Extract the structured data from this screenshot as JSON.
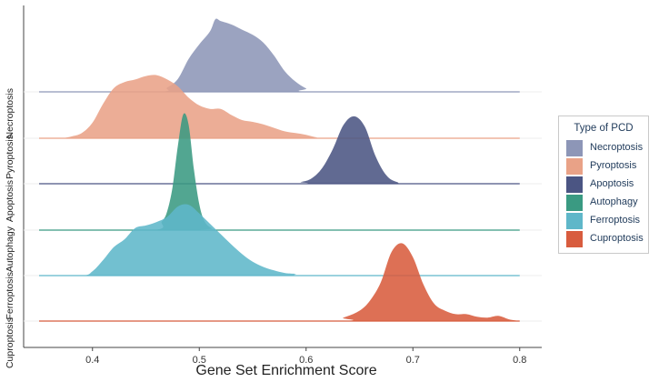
{
  "chart_data": {
    "type": "ridgeline",
    "xlabel": "Gene Set Enrichment Score",
    "ylabel": "",
    "xlim": [
      0.34,
      0.81
    ],
    "xticks": [
      "0.4",
      "0.5",
      "0.6",
      "0.7",
      "0.8"
    ],
    "xtick_values": [
      0.4,
      0.5,
      0.6,
      0.7,
      0.8
    ],
    "grid": false,
    "legend": {
      "title": "Type of PCD",
      "position": "right"
    },
    "series": [
      {
        "name": "Necroptosis",
        "color": "#8d96b7",
        "x_range": [
          0.35,
          0.8
        ],
        "density": [
          [
            0.35,
            0
          ],
          [
            0.46,
            0
          ],
          [
            0.47,
            0.05
          ],
          [
            0.48,
            0.15
          ],
          [
            0.49,
            0.38
          ],
          [
            0.5,
            0.55
          ],
          [
            0.51,
            0.7
          ],
          [
            0.515,
            0.84
          ],
          [
            0.52,
            0.82
          ],
          [
            0.53,
            0.78
          ],
          [
            0.54,
            0.72
          ],
          [
            0.55,
            0.66
          ],
          [
            0.56,
            0.57
          ],
          [
            0.57,
            0.42
          ],
          [
            0.58,
            0.24
          ],
          [
            0.59,
            0.12
          ],
          [
            0.6,
            0.04
          ],
          [
            0.61,
            0
          ],
          [
            0.8,
            0
          ]
        ]
      },
      {
        "name": "Pyroptosis",
        "color": "#e9a287",
        "x_range": [
          0.35,
          0.8
        ],
        "density": [
          [
            0.35,
            0
          ],
          [
            0.37,
            0
          ],
          [
            0.38,
            0.02
          ],
          [
            0.39,
            0.06
          ],
          [
            0.4,
            0.18
          ],
          [
            0.41,
            0.4
          ],
          [
            0.42,
            0.58
          ],
          [
            0.43,
            0.65
          ],
          [
            0.44,
            0.68
          ],
          [
            0.45,
            0.72
          ],
          [
            0.46,
            0.73
          ],
          [
            0.47,
            0.68
          ],
          [
            0.48,
            0.6
          ],
          [
            0.49,
            0.47
          ],
          [
            0.5,
            0.38
          ],
          [
            0.51,
            0.34
          ],
          [
            0.52,
            0.34
          ],
          [
            0.53,
            0.27
          ],
          [
            0.54,
            0.21
          ],
          [
            0.55,
            0.19
          ],
          [
            0.56,
            0.16
          ],
          [
            0.57,
            0.12
          ],
          [
            0.58,
            0.08
          ],
          [
            0.59,
            0.06
          ],
          [
            0.6,
            0.04
          ],
          [
            0.61,
            0.01
          ],
          [
            0.62,
            0
          ],
          [
            0.8,
            0
          ]
        ]
      },
      {
        "name": "Apoptosis",
        "color": "#4b5583",
        "x_range": [
          0.35,
          0.8
        ],
        "density": [
          [
            0.35,
            0
          ],
          [
            0.58,
            0
          ],
          [
            0.595,
            0.02
          ],
          [
            0.605,
            0.06
          ],
          [
            0.615,
            0.18
          ],
          [
            0.625,
            0.4
          ],
          [
            0.635,
            0.68
          ],
          [
            0.645,
            0.78
          ],
          [
            0.655,
            0.66
          ],
          [
            0.665,
            0.32
          ],
          [
            0.675,
            0.1
          ],
          [
            0.685,
            0.02
          ],
          [
            0.7,
            0
          ],
          [
            0.8,
            0
          ]
        ]
      },
      {
        "name": "Autophagy",
        "color": "#3a9a82",
        "x_range": [
          0.35,
          0.8
        ],
        "density": [
          [
            0.35,
            0
          ],
          [
            0.455,
            0
          ],
          [
            0.465,
            0.1
          ],
          [
            0.47,
            0.22
          ],
          [
            0.475,
            0.5
          ],
          [
            0.48,
            0.98
          ],
          [
            0.485,
            1.34
          ],
          [
            0.49,
            1.22
          ],
          [
            0.495,
            0.7
          ],
          [
            0.5,
            0.3
          ],
          [
            0.505,
            0.1
          ],
          [
            0.512,
            0.02
          ],
          [
            0.52,
            0
          ],
          [
            0.8,
            0
          ]
        ]
      },
      {
        "name": "Ferroptosis",
        "color": "#5fb7c9",
        "x_range": [
          0.35,
          0.8
        ],
        "density": [
          [
            0.35,
            0
          ],
          [
            0.39,
            0
          ],
          [
            0.4,
            0.05
          ],
          [
            0.41,
            0.18
          ],
          [
            0.42,
            0.33
          ],
          [
            0.43,
            0.42
          ],
          [
            0.44,
            0.55
          ],
          [
            0.45,
            0.58
          ],
          [
            0.46,
            0.62
          ],
          [
            0.47,
            0.68
          ],
          [
            0.48,
            0.8
          ],
          [
            0.49,
            0.82
          ],
          [
            0.5,
            0.72
          ],
          [
            0.51,
            0.6
          ],
          [
            0.52,
            0.48
          ],
          [
            0.53,
            0.36
          ],
          [
            0.54,
            0.25
          ],
          [
            0.55,
            0.16
          ],
          [
            0.56,
            0.1
          ],
          [
            0.57,
            0.06
          ],
          [
            0.58,
            0.03
          ],
          [
            0.59,
            0.02
          ],
          [
            0.61,
            0
          ],
          [
            0.8,
            0
          ]
        ]
      },
      {
        "name": "Cuproptosis",
        "color": "#d85c3e",
        "x_range": [
          0.35,
          0.8
        ],
        "density": [
          [
            0.35,
            0
          ],
          [
            0.62,
            0
          ],
          [
            0.635,
            0.04
          ],
          [
            0.65,
            0.12
          ],
          [
            0.66,
            0.24
          ],
          [
            0.67,
            0.45
          ],
          [
            0.68,
            0.8
          ],
          [
            0.69,
            0.9
          ],
          [
            0.7,
            0.74
          ],
          [
            0.71,
            0.42
          ],
          [
            0.72,
            0.2
          ],
          [
            0.73,
            0.12
          ],
          [
            0.74,
            0.08
          ],
          [
            0.75,
            0.08
          ],
          [
            0.76,
            0.05
          ],
          [
            0.77,
            0.04
          ],
          [
            0.78,
            0.06
          ],
          [
            0.79,
            0.02
          ],
          [
            0.8,
            0
          ]
        ]
      }
    ]
  }
}
